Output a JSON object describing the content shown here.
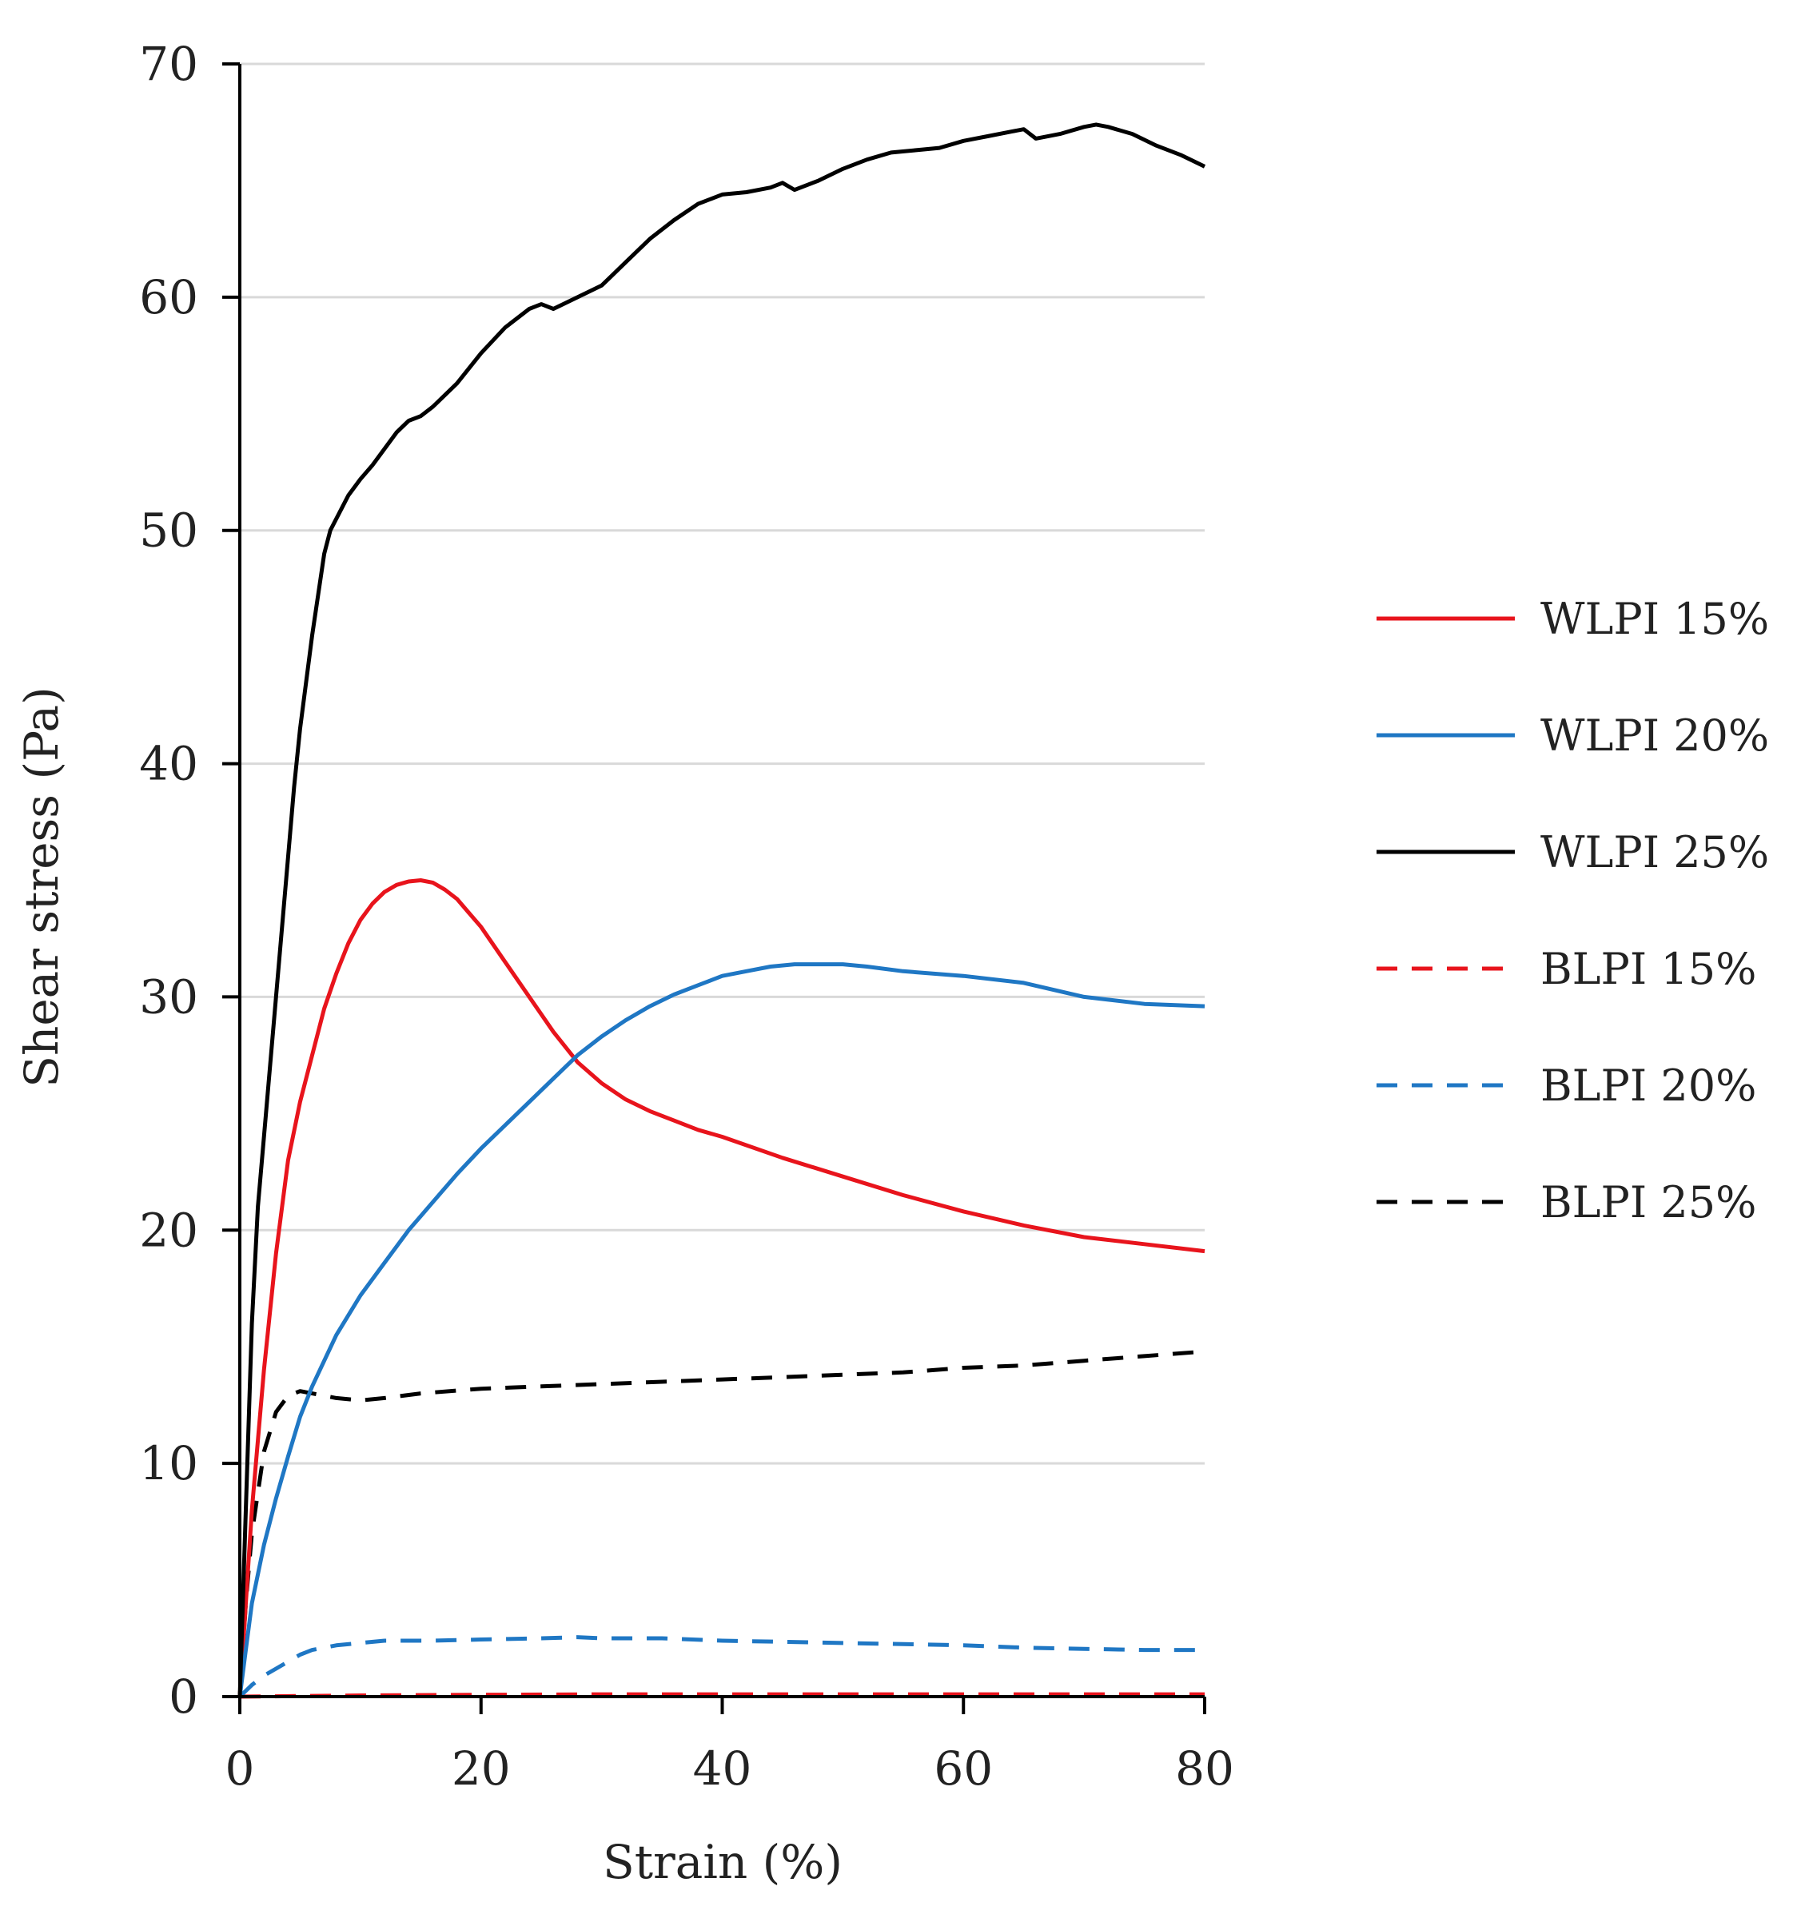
{
  "chart_data": {
    "type": "line",
    "title": "",
    "xlabel": "Strain (%)",
    "ylabel": "Shear stress (Pa)",
    "xlim": [
      0,
      80
    ],
    "ylim": [
      0,
      70
    ],
    "xticks": [
      0,
      20,
      40,
      60,
      80
    ],
    "yticks": [
      0,
      10,
      20,
      30,
      40,
      50,
      60,
      70
    ],
    "grid": "horizontal",
    "legend_position": "right",
    "series": [
      {
        "name": "WLPI 15%",
        "color": "#e8141c",
        "dash": "solid",
        "x": [
          0,
          0.5,
          1,
          2,
          3,
          4,
          5,
          6,
          7,
          8,
          9,
          10,
          11,
          12,
          13,
          14,
          15,
          16,
          17,
          18,
          19,
          20,
          22,
          24,
          26,
          28,
          30,
          32,
          34,
          36,
          38,
          40,
          45,
          50,
          55,
          60,
          65,
          70,
          75,
          80
        ],
        "y": [
          0,
          4,
          8,
          14,
          19,
          23,
          25.5,
          27.5,
          29.5,
          31,
          32.3,
          33.3,
          34,
          34.5,
          34.8,
          34.95,
          35,
          34.9,
          34.6,
          34.2,
          33.6,
          33,
          31.5,
          30,
          28.5,
          27.2,
          26.3,
          25.6,
          25.1,
          24.7,
          24.3,
          24,
          23.1,
          22.3,
          21.5,
          20.8,
          20.2,
          19.7,
          19.4,
          19.1
        ]
      },
      {
        "name": "WLPI 20%",
        "color": "#1f77c4",
        "dash": "solid",
        "x": [
          0,
          0.5,
          1,
          2,
          3,
          4,
          5,
          6,
          8,
          10,
          12,
          14,
          16,
          18,
          20,
          22,
          24,
          26,
          28,
          30,
          32,
          34,
          36,
          38,
          40,
          42,
          44,
          46,
          48,
          50,
          52,
          55,
          60,
          65,
          70,
          75,
          80
        ],
        "y": [
          0,
          2,
          4,
          6.5,
          8.5,
          10.3,
          12,
          13.3,
          15.5,
          17.2,
          18.6,
          20,
          21.2,
          22.4,
          23.5,
          24.5,
          25.5,
          26.5,
          27.5,
          28.3,
          29,
          29.6,
          30.1,
          30.5,
          30.9,
          31.1,
          31.3,
          31.4,
          31.4,
          31.4,
          31.3,
          31.1,
          30.9,
          30.6,
          30,
          29.7,
          29.6
        ]
      },
      {
        "name": "WLPI 25%",
        "color": "#000000",
        "dash": "solid",
        "x": [
          0,
          0.5,
          1,
          1.5,
          2,
          3,
          4,
          4.5,
          5,
          6,
          7,
          7.5,
          8,
          9,
          10,
          11,
          12,
          13,
          14,
          15,
          16,
          18,
          20,
          22,
          24,
          25,
          26,
          28,
          30,
          32,
          34,
          36,
          38,
          40,
          42,
          44,
          45,
          46,
          48,
          50,
          52,
          54,
          56,
          58,
          60,
          62,
          64,
          65,
          66,
          68,
          70,
          71,
          72,
          74,
          76,
          78,
          80
        ],
        "y": [
          0,
          8,
          16,
          21,
          24,
          30,
          36,
          39,
          41.5,
          45.5,
          49,
          50,
          50.5,
          51.5,
          52.2,
          52.8,
          53.5,
          54.2,
          54.7,
          54.9,
          55.3,
          56.3,
          57.6,
          58.7,
          59.5,
          59.7,
          59.5,
          60,
          60.5,
          61.5,
          62.5,
          63.3,
          64,
          64.4,
          64.5,
          64.7,
          64.9,
          64.6,
          65,
          65.5,
          65.9,
          66.2,
          66.3,
          66.4,
          66.7,
          66.9,
          67.1,
          67.2,
          66.8,
          67,
          67.3,
          67.4,
          67.3,
          67,
          66.5,
          66.1,
          65.6
        ]
      },
      {
        "name": "BLPI 15%",
        "color": "#e8141c",
        "dash": "dashed",
        "x": [
          0,
          10,
          20,
          30,
          40,
          50,
          60,
          70,
          80
        ],
        "y": [
          0,
          0.05,
          0.08,
          0.1,
          0.1,
          0.1,
          0.1,
          0.1,
          0.1
        ]
      },
      {
        "name": "BLPI 20%",
        "color": "#1f77c4",
        "dash": "dashed",
        "x": [
          0,
          1,
          2,
          3,
          4,
          5,
          6,
          8,
          10,
          12,
          14,
          16,
          20,
          25,
          28,
          30,
          35,
          40,
          45,
          50,
          55,
          60,
          65,
          70,
          75,
          80
        ],
        "y": [
          0,
          0.5,
          0.9,
          1.2,
          1.5,
          1.8,
          2,
          2.2,
          2.3,
          2.4,
          2.4,
          2.4,
          2.45,
          2.5,
          2.55,
          2.5,
          2.5,
          2.4,
          2.35,
          2.3,
          2.25,
          2.2,
          2.1,
          2.05,
          2,
          2
        ]
      },
      {
        "name": "BLPI 25%",
        "color": "#000000",
        "dash": "dashed",
        "x": [
          0,
          0.5,
          1,
          2,
          3,
          4,
          5,
          6,
          8,
          10,
          12,
          15,
          20,
          25,
          30,
          35,
          40,
          45,
          50,
          55,
          60,
          65,
          70,
          75,
          80
        ],
        "y": [
          0,
          4,
          7,
          10.5,
          12.2,
          12.9,
          13.1,
          13,
          12.8,
          12.7,
          12.8,
          13,
          13.2,
          13.3,
          13.4,
          13.5,
          13.6,
          13.7,
          13.8,
          13.9,
          14.1,
          14.2,
          14.4,
          14.6,
          14.8
        ]
      }
    ]
  }
}
